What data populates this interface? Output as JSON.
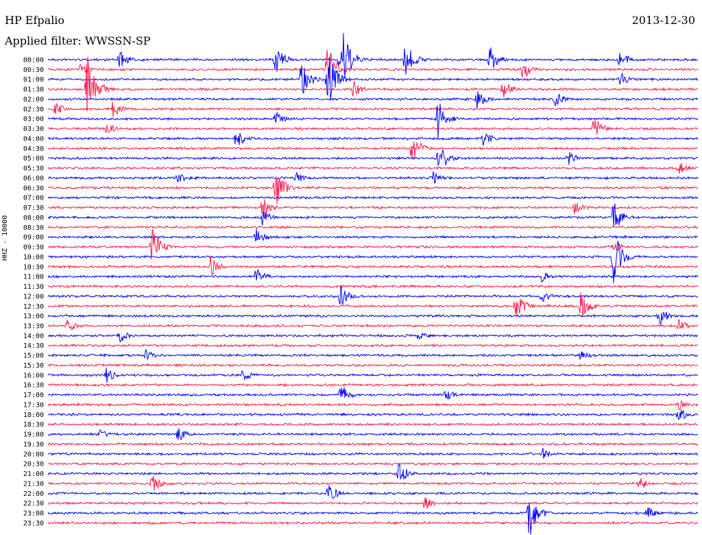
{
  "header": {
    "station": "HP Efpalio",
    "filter": "Applied filter: WWSSN-SP",
    "date": "2013-12-30",
    "channel": "HHZ - 10000"
  },
  "chart_data": {
    "type": "line",
    "title": "HP Efpalio",
    "subtitle": "Applied filter: WWSSN-SP",
    "date": "2013-12-30",
    "ylabel": "HHZ - 10000",
    "xlabel": "",
    "row_labels": [
      "00:00",
      "00:30",
      "01:00",
      "01:30",
      "02:00",
      "02:30",
      "03:00",
      "03:30",
      "04:00",
      "04:30",
      "05:00",
      "05:30",
      "06:00",
      "06:30",
      "07:00",
      "07:30",
      "08:00",
      "08:30",
      "09:00",
      "09:30",
      "10:00",
      "10:30",
      "11:00",
      "11:30",
      "12:00",
      "12:30",
      "13:00",
      "13:30",
      "14:00",
      "14:30",
      "15:00",
      "15:30",
      "16:00",
      "16:30",
      "17:00",
      "17:30",
      "18:00",
      "18:30",
      "19:00",
      "19:30",
      "20:00",
      "20:30",
      "21:00",
      "21:30",
      "22:00",
      "22:30",
      "23:00",
      "23:30"
    ],
    "colors": [
      "#0000ff",
      "#ff1a4a"
    ],
    "grid": false,
    "legend": "none",
    "events": [
      {
        "row": 0,
        "x": 0.11,
        "amp": 14
      },
      {
        "row": 0,
        "x": 0.35,
        "amp": 22
      },
      {
        "row": 0,
        "x": 0.45,
        "amp": 60
      },
      {
        "row": 0,
        "x": 0.55,
        "amp": 28
      },
      {
        "row": 0,
        "x": 0.68,
        "amp": 20
      },
      {
        "row": 0,
        "x": 0.88,
        "amp": 14
      },
      {
        "row": 1,
        "x": 0.05,
        "amp": 10
      },
      {
        "row": 1,
        "x": 0.43,
        "amp": 40
      },
      {
        "row": 1,
        "x": 0.73,
        "amp": 16
      },
      {
        "row": 2,
        "x": 0.39,
        "amp": 30
      },
      {
        "row": 2,
        "x": 0.43,
        "amp": 45
      },
      {
        "row": 2,
        "x": 0.88,
        "amp": 12
      },
      {
        "row": 3,
        "x": 0.06,
        "amp": 60
      },
      {
        "row": 3,
        "x": 0.47,
        "amp": 14
      },
      {
        "row": 3,
        "x": 0.7,
        "amp": 14
      },
      {
        "row": 4,
        "x": 0.66,
        "amp": 16
      },
      {
        "row": 4,
        "x": 0.78,
        "amp": 12
      },
      {
        "row": 5,
        "x": 0.01,
        "amp": 12
      },
      {
        "row": 5,
        "x": 0.1,
        "amp": 14
      },
      {
        "row": 6,
        "x": 0.35,
        "amp": 14
      },
      {
        "row": 6,
        "x": 0.6,
        "amp": 30
      },
      {
        "row": 7,
        "x": 0.09,
        "amp": 10
      },
      {
        "row": 7,
        "x": 0.84,
        "amp": 18
      },
      {
        "row": 8,
        "x": 0.29,
        "amp": 18
      },
      {
        "row": 8,
        "x": 0.67,
        "amp": 14
      },
      {
        "row": 9,
        "x": 0.56,
        "amp": 24
      },
      {
        "row": 10,
        "x": 0.6,
        "amp": 26
      },
      {
        "row": 10,
        "x": 0.8,
        "amp": 12
      },
      {
        "row": 11,
        "x": 0.97,
        "amp": 12
      },
      {
        "row": 12,
        "x": 0.2,
        "amp": 12
      },
      {
        "row": 12,
        "x": 0.38,
        "amp": 10
      },
      {
        "row": 12,
        "x": 0.59,
        "amp": 14
      },
      {
        "row": 13,
        "x": 0.35,
        "amp": 30
      },
      {
        "row": 15,
        "x": 0.33,
        "amp": 16
      },
      {
        "row": 15,
        "x": 0.81,
        "amp": 10
      },
      {
        "row": 16,
        "x": 0.33,
        "amp": 12
      },
      {
        "row": 16,
        "x": 0.87,
        "amp": 26
      },
      {
        "row": 18,
        "x": 0.32,
        "amp": 14
      },
      {
        "row": 19,
        "x": 0.16,
        "amp": 30
      },
      {
        "row": 19,
        "x": 0.87,
        "amp": 10
      },
      {
        "row": 20,
        "x": 0.87,
        "amp": 40
      },
      {
        "row": 21,
        "x": 0.25,
        "amp": 16
      },
      {
        "row": 22,
        "x": 0.32,
        "amp": 14
      },
      {
        "row": 22,
        "x": 0.76,
        "amp": 10
      },
      {
        "row": 24,
        "x": 0.45,
        "amp": 16
      },
      {
        "row": 24,
        "x": 0.76,
        "amp": 12
      },
      {
        "row": 25,
        "x": 0.72,
        "amp": 20
      },
      {
        "row": 25,
        "x": 0.82,
        "amp": 24
      },
      {
        "row": 26,
        "x": 0.94,
        "amp": 16
      },
      {
        "row": 27,
        "x": 0.03,
        "amp": 12
      },
      {
        "row": 27,
        "x": 0.97,
        "amp": 10
      },
      {
        "row": 28,
        "x": 0.11,
        "amp": 12
      },
      {
        "row": 28,
        "x": 0.57,
        "amp": 8
      },
      {
        "row": 30,
        "x": 0.15,
        "amp": 10
      },
      {
        "row": 30,
        "x": 0.82,
        "amp": 10
      },
      {
        "row": 32,
        "x": 0.09,
        "amp": 12
      },
      {
        "row": 32,
        "x": 0.3,
        "amp": 10
      },
      {
        "row": 34,
        "x": 0.45,
        "amp": 18
      },
      {
        "row": 34,
        "x": 0.61,
        "amp": 12
      },
      {
        "row": 35,
        "x": 0.97,
        "amp": 10
      },
      {
        "row": 36,
        "x": 0.97,
        "amp": 12
      },
      {
        "row": 38,
        "x": 0.08,
        "amp": 8
      },
      {
        "row": 38,
        "x": 0.2,
        "amp": 12
      },
      {
        "row": 40,
        "x": 0.76,
        "amp": 10
      },
      {
        "row": 42,
        "x": 0.54,
        "amp": 20
      },
      {
        "row": 43,
        "x": 0.16,
        "amp": 14
      },
      {
        "row": 43,
        "x": 0.91,
        "amp": 10
      },
      {
        "row": 44,
        "x": 0.43,
        "amp": 18
      },
      {
        "row": 45,
        "x": 0.58,
        "amp": 12
      },
      {
        "row": 46,
        "x": 0.74,
        "amp": 40
      },
      {
        "row": 46,
        "x": 0.92,
        "amp": 12
      }
    ]
  }
}
